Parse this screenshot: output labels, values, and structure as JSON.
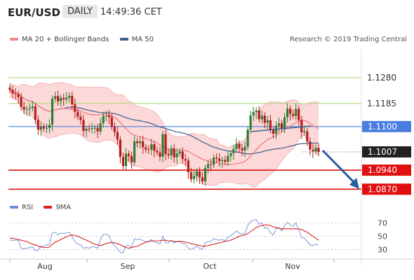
{
  "header": {
    "symbol": "EUR/USD",
    "timeframe": "DAILY",
    "time": "14:49:36 CET"
  },
  "legend": {
    "ma_bb": "MA 20 + Bollinger Bands",
    "ma50": "MA 50",
    "rsi": "RSI",
    "ma9": "9MA"
  },
  "copyright": "Research © 2019 Trading Central",
  "colors": {
    "up_candle": "#2e7d32",
    "down_candle": "#b71c1c",
    "bollinger_fill": "#fcd8d8",
    "ma20": "#ee7777",
    "ma50": "#3a5f8f",
    "resistance": "#b5dd86",
    "pivot": "#4a7ee0",
    "support": "#e01010",
    "current": "#222222",
    "rsi": "#6a8fd8",
    "rsi_ma": "#d82020",
    "arrow": "#2a5b9c"
  },
  "chart_data": [
    {
      "type": "candlestick",
      "x_ticks": [
        "Aug",
        "Sep",
        "Oct",
        "Nov"
      ],
      "y_range": [
        1.0845,
        1.1385
      ],
      "levels": [
        {
          "value": 1.128,
          "label": "1.1280",
          "role": "resistance"
        },
        {
          "value": 1.1185,
          "label": "1.1185",
          "role": "resistance"
        },
        {
          "value": 1.11,
          "label": "1.1100",
          "role": "pivot"
        },
        {
          "value": 1.1007,
          "label": "1.1007",
          "role": "current"
        },
        {
          "value": 1.094,
          "label": "1.0940",
          "role": "support"
        },
        {
          "value": 1.087,
          "label": "1.0870",
          "role": "support"
        }
      ],
      "closes": [
        1.1235,
        1.1221,
        1.1219,
        1.1208,
        1.1172,
        1.1163,
        1.1165,
        1.1168,
        1.1174,
        1.1125,
        1.1089,
        1.1099,
        1.1093,
        1.1095,
        1.1107,
        1.1202,
        1.1212,
        1.1193,
        1.1205,
        1.12,
        1.1206,
        1.1213,
        1.1182,
        1.1154,
        1.1136,
        1.1124,
        1.1084,
        1.1092,
        1.1091,
        1.1094,
        1.1095,
        1.1082,
        1.1112,
        1.114,
        1.1141,
        1.1134,
        1.11,
        1.108,
        1.1052,
        1.0988,
        1.0955,
        1.1,
        1.0992,
        1.0969,
        1.1046,
        1.1039,
        1.1046,
        1.1024,
        1.1016,
        1.1015,
        1.1035,
        1.1011,
        1.1005,
        1.0989,
        1.1072,
        1.0999,
        1.0994,
        1.102,
        1.0987,
        1.1001,
        1.1008,
        1.0981,
        1.0975,
        1.0932,
        1.0907,
        1.0918,
        1.0935,
        1.0914,
        1.0899,
        1.0948,
        1.0962,
        1.096,
        1.0986,
        1.0982,
        1.0973,
        1.0977,
        1.0971,
        1.0992,
        1.1002,
        1.1018,
        1.1037,
        1.102,
        1.1012,
        1.1026,
        1.1089,
        1.1141,
        1.1153,
        1.1159,
        1.1127,
        1.114,
        1.1114,
        1.1123,
        1.1087,
        1.1074,
        1.1103,
        1.1112,
        1.1092,
        1.1134,
        1.1166,
        1.1147,
        1.1139,
        1.1165,
        1.1124,
        1.1079,
        1.1083,
        1.1045,
        1.1015,
        1.1009,
        1.1022,
        1.1007
      ],
      "ma20_end": 1.1085,
      "ma50_end": 1.1052,
      "bb_upper_end": 1.1185,
      "bb_lower_end": 1.0985
    },
    {
      "type": "line",
      "title": "RSI",
      "y_ticks": [
        70,
        50,
        30
      ],
      "y_range": [
        20,
        82
      ],
      "series": [
        {
          "name": "RSI",
          "values": [
            44,
            44,
            44,
            44,
            32,
            31,
            32,
            33,
            34,
            28,
            29,
            35,
            35,
            37,
            38,
            55,
            56,
            52,
            55,
            54,
            55,
            56,
            49,
            42,
            38,
            37,
            32,
            33,
            32,
            34,
            34,
            32,
            45,
            53,
            53,
            51,
            40,
            36,
            31,
            26,
            25,
            36,
            36,
            33,
            46,
            45,
            46,
            43,
            42,
            42,
            45,
            41,
            40,
            38,
            50,
            40,
            40,
            44,
            40,
            42,
            43,
            39,
            38,
            32,
            30,
            32,
            35,
            32,
            30,
            40,
            42,
            42,
            46,
            45,
            44,
            45,
            43,
            48,
            51,
            54,
            58,
            55,
            53,
            55,
            66,
            72,
            74,
            75,
            68,
            70,
            62,
            63,
            55,
            52,
            61,
            63,
            58,
            66,
            71,
            67,
            65,
            70,
            60,
            48,
            47,
            42,
            37,
            36,
            38,
            36
          ]
        },
        {
          "name": "9MA",
          "values": [
            47,
            47,
            46,
            45,
            44,
            43,
            42,
            40,
            38,
            37,
            35,
            34,
            33,
            33,
            34,
            38,
            41,
            43,
            45,
            47,
            49,
            51,
            52,
            51,
            50,
            48,
            46,
            44,
            42,
            40,
            38,
            37,
            36,
            37,
            39,
            40,
            41,
            40,
            39,
            37,
            35,
            33,
            32,
            33,
            34,
            35,
            37,
            39,
            41,
            42,
            43,
            43,
            43,
            43,
            44,
            44,
            43,
            43,
            42,
            42,
            42,
            42,
            41,
            40,
            39,
            38,
            37,
            36,
            35,
            35,
            36,
            37,
            38,
            39,
            40,
            41,
            42,
            43,
            44,
            46,
            48,
            50,
            51,
            52,
            54,
            57,
            60,
            63,
            65,
            66,
            67,
            67,
            66,
            64,
            63,
            62,
            61,
            61,
            61,
            61,
            61,
            61,
            61,
            60,
            58,
            56,
            53,
            50,
            47,
            44
          ]
        }
      ]
    }
  ]
}
